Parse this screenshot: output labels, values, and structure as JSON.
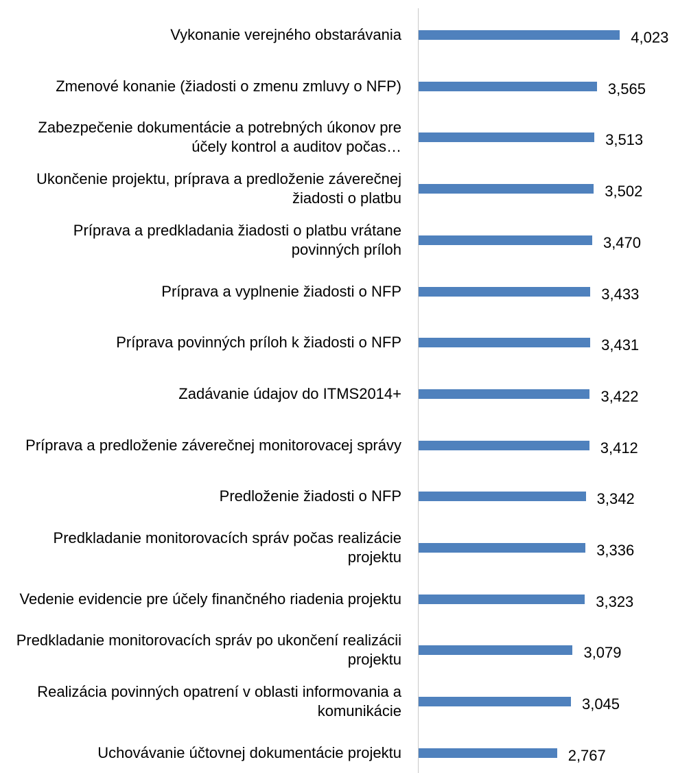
{
  "chart_data": {
    "type": "bar",
    "orientation": "horizontal",
    "color": "#4f81bd",
    "categories": [
      "Vykonanie verejného obstarávania",
      "Zmenové konanie (žiadosti o zmenu zmluvy o NFP)",
      "Zabezpečenie dokumentácie a potrebných úkonov pre účely kontrol a auditov počas…",
      "Ukončenie projektu, príprava a predloženie záverečnej žiadosti o platbu",
      "Príprava a predkladania žiadosti o platbu vrátane povinných príloh",
      "Príprava a vyplnenie žiadosti o NFP",
      "Príprava povinných príloh k žiadosti o NFP",
      "Zadávanie údajov do ITMS2014+",
      "Príprava a predloženie záverečnej monitorovacej správy",
      "Predloženie žiadosti o NFP",
      "Predkladanie monitorovacích správ počas realizácie projektu",
      "Vedenie evidencie pre účely finančného riadenia projektu",
      "Predkladanie monitorovacích správ po ukončení realizácii projektu",
      "Realizácia povinných opatrení v oblasti informovania a komunikácie",
      "Uchovávanie účtovnej dokumentácie projektu"
    ],
    "values": [
      4.023,
      3.565,
      3.513,
      3.502,
      3.47,
      3.433,
      3.431,
      3.422,
      3.412,
      3.342,
      3.336,
      3.323,
      3.079,
      3.045,
      2.767
    ],
    "value_labels": [
      "4,023",
      "3,565",
      "3,513",
      "3,502",
      "3,470",
      "3,433",
      "3,431",
      "3,422",
      "3,412",
      "3,342",
      "3,336",
      "3,323",
      "3,079",
      "3,045",
      "2,767"
    ],
    "xlim": [
      0,
      5
    ]
  }
}
